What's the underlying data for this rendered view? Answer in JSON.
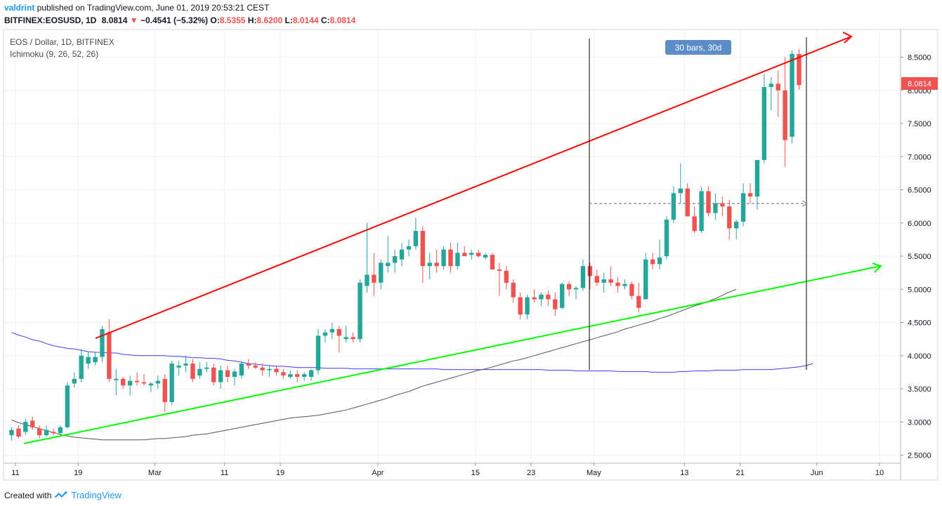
{
  "header": {
    "author": "valdrint",
    "published": " published on TradingView.com, June 01, 2019 20:53:21 CEST",
    "symbol": "BITFINEX:EOSUSD, 1D",
    "last": "8.0814",
    "change": "−0.4541 (−5.32%)",
    "o_label": "O:",
    "o": "8.5355",
    "h_label": "H:",
    "h": "8.6200",
    "l_label": "L:",
    "l": "8.0144",
    "c_label": "C:",
    "c": "8.0814",
    "pair": "EOS / Dollar, 1D, BITFINEX",
    "indicator": "Ichimoku (9, 26, 52, 26)"
  },
  "footer": {
    "created_with": "Created with",
    "brand": "TradingView"
  },
  "colors": {
    "up": "#26a69a",
    "down": "#ef5350",
    "red_line": "#ff0000",
    "green_line": "#00ff00",
    "base_line": "#3f3fff",
    "lagging_line": "#555555",
    "label_bg": "#5b8cc7",
    "price_label_bg": "#ef5350"
  },
  "chart_data": {
    "type": "candlestick",
    "y_axis": {
      "min": 2.5,
      "max": 8.5,
      "ticks": [
        "2.5000",
        "3.0000",
        "3.5000",
        "4.0000",
        "4.5000",
        "5.0000",
        "5.5000",
        "6.0000",
        "6.5000",
        "7.0000",
        "7.5000",
        "8.0000",
        "8.5000"
      ]
    },
    "x_ticks": [
      "11",
      "19",
      "Mar",
      "11",
      "19",
      "Apr",
      "15",
      "23",
      "May",
      "13",
      "21",
      "Jun",
      "10"
    ],
    "last_price_label": "8.0814",
    "candles": [
      {
        "o": 2.8,
        "h": 2.92,
        "l": 2.72,
        "c": 2.88
      },
      {
        "o": 2.9,
        "h": 2.95,
        "l": 2.75,
        "c": 2.78
      },
      {
        "o": 2.85,
        "h": 3.05,
        "l": 2.8,
        "c": 3.0
      },
      {
        "o": 3.02,
        "h": 3.08,
        "l": 2.88,
        "c": 2.92
      },
      {
        "o": 2.9,
        "h": 2.95,
        "l": 2.75,
        "c": 2.8
      },
      {
        "o": 2.8,
        "h": 2.95,
        "l": 2.78,
        "c": 2.88
      },
      {
        "o": 2.85,
        "h": 2.9,
        "l": 2.8,
        "c": 2.83
      },
      {
        "o": 2.83,
        "h": 2.95,
        "l": 2.8,
        "c": 2.92
      },
      {
        "o": 2.92,
        "h": 3.6,
        "l": 2.9,
        "c": 3.55
      },
      {
        "o": 3.58,
        "h": 3.75,
        "l": 3.52,
        "c": 3.65
      },
      {
        "o": 3.65,
        "h": 4.1,
        "l": 3.6,
        "c": 4.0
      },
      {
        "o": 3.88,
        "h": 4.05,
        "l": 3.8,
        "c": 3.98
      },
      {
        "o": 3.9,
        "h": 4.05,
        "l": 3.85,
        "c": 3.98
      },
      {
        "o": 3.98,
        "h": 4.45,
        "l": 3.9,
        "c": 4.4
      },
      {
        "o": 4.35,
        "h": 4.55,
        "l": 3.6,
        "c": 3.65
      },
      {
        "o": 3.63,
        "h": 3.8,
        "l": 3.4,
        "c": 3.65
      },
      {
        "o": 3.65,
        "h": 3.68,
        "l": 3.5,
        "c": 3.55
      },
      {
        "o": 3.55,
        "h": 3.7,
        "l": 3.4,
        "c": 3.62
      },
      {
        "o": 3.62,
        "h": 3.75,
        "l": 3.55,
        "c": 3.6
      },
      {
        "o": 3.6,
        "h": 3.72,
        "l": 3.55,
        "c": 3.58
      },
      {
        "o": 3.55,
        "h": 3.6,
        "l": 3.45,
        "c": 3.58
      },
      {
        "o": 3.58,
        "h": 3.7,
        "l": 3.5,
        "c": 3.62
      },
      {
        "o": 3.65,
        "h": 3.72,
        "l": 3.15,
        "c": 3.3
      },
      {
        "o": 3.3,
        "h": 3.92,
        "l": 3.25,
        "c": 3.88
      },
      {
        "o": 3.82,
        "h": 3.92,
        "l": 3.7,
        "c": 3.85
      },
      {
        "o": 3.85,
        "h": 4.0,
        "l": 3.75,
        "c": 3.88
      },
      {
        "o": 3.88,
        "h": 3.95,
        "l": 3.6,
        "c": 3.65
      },
      {
        "o": 3.7,
        "h": 3.9,
        "l": 3.65,
        "c": 3.8
      },
      {
        "o": 3.8,
        "h": 3.9,
        "l": 3.75,
        "c": 3.82
      },
      {
        "o": 3.82,
        "h": 3.88,
        "l": 3.55,
        "c": 3.6
      },
      {
        "o": 3.6,
        "h": 3.85,
        "l": 3.5,
        "c": 3.78
      },
      {
        "o": 3.78,
        "h": 3.85,
        "l": 3.6,
        "c": 3.68
      },
      {
        "o": 3.68,
        "h": 3.8,
        "l": 3.55,
        "c": 3.76
      },
      {
        "o": 3.7,
        "h": 3.92,
        "l": 3.65,
        "c": 3.88
      },
      {
        "o": 3.88,
        "h": 3.95,
        "l": 3.8,
        "c": 3.85
      },
      {
        "o": 3.85,
        "h": 3.9,
        "l": 3.8,
        "c": 3.82
      },
      {
        "o": 3.82,
        "h": 3.88,
        "l": 3.7,
        "c": 3.78
      },
      {
        "o": 3.78,
        "h": 3.85,
        "l": 3.68,
        "c": 3.8
      },
      {
        "o": 3.8,
        "h": 3.85,
        "l": 3.7,
        "c": 3.75
      },
      {
        "o": 3.75,
        "h": 3.8,
        "l": 3.65,
        "c": 3.7
      },
      {
        "o": 3.68,
        "h": 3.78,
        "l": 3.65,
        "c": 3.72
      },
      {
        "o": 3.72,
        "h": 3.78,
        "l": 3.6,
        "c": 3.68
      },
      {
        "o": 3.68,
        "h": 3.75,
        "l": 3.62,
        "c": 3.72
      },
      {
        "o": 3.68,
        "h": 3.8,
        "l": 3.62,
        "c": 3.78
      },
      {
        "o": 3.78,
        "h": 4.4,
        "l": 3.72,
        "c": 4.3
      },
      {
        "o": 4.3,
        "h": 4.4,
        "l": 4.2,
        "c": 4.35
      },
      {
        "o": 4.35,
        "h": 4.5,
        "l": 4.25,
        "c": 4.4
      },
      {
        "o": 4.4,
        "h": 4.45,
        "l": 4.05,
        "c": 4.3
      },
      {
        "o": 4.25,
        "h": 4.45,
        "l": 4.2,
        "c": 4.28
      },
      {
        "o": 4.28,
        "h": 4.35,
        "l": 4.2,
        "c": 4.25
      },
      {
        "o": 4.25,
        "h": 5.15,
        "l": 4.2,
        "c": 5.1
      },
      {
        "o": 5.05,
        "h": 6.0,
        "l": 4.95,
        "c": 5.22
      },
      {
        "o": 5.22,
        "h": 5.55,
        "l": 4.9,
        "c": 5.1
      },
      {
        "o": 5.1,
        "h": 5.45,
        "l": 5.0,
        "c": 5.4
      },
      {
        "o": 5.35,
        "h": 5.8,
        "l": 5.25,
        "c": 5.4
      },
      {
        "o": 5.4,
        "h": 5.6,
        "l": 5.25,
        "c": 5.5
      },
      {
        "o": 5.45,
        "h": 5.7,
        "l": 5.35,
        "c": 5.6
      },
      {
        "o": 5.6,
        "h": 5.75,
        "l": 5.5,
        "c": 5.65
      },
      {
        "o": 5.65,
        "h": 6.08,
        "l": 5.6,
        "c": 5.88
      },
      {
        "o": 5.88,
        "h": 5.95,
        "l": 5.1,
        "c": 5.35
      },
      {
        "o": 5.35,
        "h": 5.55,
        "l": 5.15,
        "c": 5.4
      },
      {
        "o": 5.4,
        "h": 5.6,
        "l": 5.25,
        "c": 5.35
      },
      {
        "o": 5.35,
        "h": 5.65,
        "l": 5.3,
        "c": 5.6
      },
      {
        "o": 5.6,
        "h": 5.7,
        "l": 5.25,
        "c": 5.35
      },
      {
        "o": 5.35,
        "h": 5.7,
        "l": 5.3,
        "c": 5.55
      },
      {
        "o": 5.55,
        "h": 5.65,
        "l": 5.5,
        "c": 5.5
      },
      {
        "o": 5.52,
        "h": 5.6,
        "l": 5.45,
        "c": 5.55
      },
      {
        "o": 5.55,
        "h": 5.6,
        "l": 5.48,
        "c": 5.5
      },
      {
        "o": 5.48,
        "h": 5.55,
        "l": 5.45,
        "c": 5.52
      },
      {
        "o": 5.52,
        "h": 5.55,
        "l": 5.3,
        "c": 5.3
      },
      {
        "o": 5.3,
        "h": 5.4,
        "l": 4.9,
        "c": 5.28
      },
      {
        "o": 5.28,
        "h": 5.35,
        "l": 5.0,
        "c": 5.1
      },
      {
        "o": 5.1,
        "h": 5.15,
        "l": 4.8,
        "c": 4.88
      },
      {
        "o": 4.88,
        "h": 4.95,
        "l": 4.55,
        "c": 4.62
      },
      {
        "o": 4.62,
        "h": 4.92,
        "l": 4.55,
        "c": 4.88
      },
      {
        "o": 4.88,
        "h": 5.0,
        "l": 4.8,
        "c": 4.85
      },
      {
        "o": 4.85,
        "h": 4.95,
        "l": 4.75,
        "c": 4.92
      },
      {
        "o": 4.92,
        "h": 4.98,
        "l": 4.75,
        "c": 4.85
      },
      {
        "o": 4.85,
        "h": 4.95,
        "l": 4.6,
        "c": 4.7
      },
      {
        "o": 4.72,
        "h": 5.1,
        "l": 4.7,
        "c": 5.08
      },
      {
        "o": 5.08,
        "h": 5.12,
        "l": 4.9,
        "c": 5.0
      },
      {
        "o": 5.0,
        "h": 5.05,
        "l": 4.85,
        "c": 5.02
      },
      {
        "o": 5.02,
        "h": 5.45,
        "l": 4.98,
        "c": 5.35
      },
      {
        "o": 5.35,
        "h": 5.4,
        "l": 5.0,
        "c": 5.2
      },
      {
        "o": 5.2,
        "h": 5.3,
        "l": 5.05,
        "c": 5.1
      },
      {
        "o": 5.1,
        "h": 5.25,
        "l": 4.95,
        "c": 5.15
      },
      {
        "o": 5.15,
        "h": 5.35,
        "l": 5.05,
        "c": 5.1
      },
      {
        "o": 5.1,
        "h": 5.18,
        "l": 4.95,
        "c": 5.05
      },
      {
        "o": 5.05,
        "h": 5.15,
        "l": 5.0,
        "c": 5.08
      },
      {
        "o": 5.08,
        "h": 5.12,
        "l": 4.85,
        "c": 4.9
      },
      {
        "o": 4.9,
        "h": 5.1,
        "l": 4.65,
        "c": 4.72
      },
      {
        "o": 4.85,
        "h": 5.55,
        "l": 4.85,
        "c": 5.45
      },
      {
        "o": 5.45,
        "h": 5.55,
        "l": 5.3,
        "c": 5.38
      },
      {
        "o": 5.38,
        "h": 5.75,
        "l": 5.3,
        "c": 5.48
      },
      {
        "o": 5.5,
        "h": 6.1,
        "l": 5.45,
        "c": 6.05
      },
      {
        "o": 6.05,
        "h": 6.55,
        "l": 6.0,
        "c": 6.45
      },
      {
        "o": 6.45,
        "h": 6.9,
        "l": 6.3,
        "c": 6.52
      },
      {
        "o": 6.52,
        "h": 6.6,
        "l": 6.1,
        "c": 6.1
      },
      {
        "o": 6.1,
        "h": 6.25,
        "l": 5.85,
        "c": 5.88
      },
      {
        "o": 5.88,
        "h": 6.55,
        "l": 5.85,
        "c": 6.48
      },
      {
        "o": 6.48,
        "h": 6.55,
        "l": 6.1,
        "c": 6.15
      },
      {
        "o": 6.15,
        "h": 6.45,
        "l": 6.05,
        "c": 6.3
      },
      {
        "o": 6.3,
        "h": 6.4,
        "l": 6.1,
        "c": 6.25
      },
      {
        "o": 6.25,
        "h": 6.35,
        "l": 5.75,
        "c": 5.92
      },
      {
        "o": 5.92,
        "h": 6.05,
        "l": 5.75,
        "c": 6.02
      },
      {
        "o": 6.02,
        "h": 6.6,
        "l": 5.95,
        "c": 6.45
      },
      {
        "o": 6.45,
        "h": 6.6,
        "l": 6.3,
        "c": 6.4
      },
      {
        "o": 6.4,
        "h": 6.95,
        "l": 6.2,
        "c": 6.95
      },
      {
        "o": 6.95,
        "h": 8.25,
        "l": 6.9,
        "c": 8.05
      },
      {
        "o": 8.05,
        "h": 8.2,
        "l": 7.7,
        "c": 8.1
      },
      {
        "o": 8.1,
        "h": 8.3,
        "l": 7.6,
        "c": 8.0
      },
      {
        "o": 8.0,
        "h": 8.5,
        "l": 6.85,
        "c": 7.25
      },
      {
        "o": 7.3,
        "h": 8.6,
        "l": 7.2,
        "c": 8.55
      },
      {
        "o": 8.55,
        "h": 8.62,
        "l": 8.01,
        "c": 8.08
      }
    ],
    "kijun_base_line": [
      4.35,
      4.31,
      4.28,
      4.24,
      4.22,
      4.18,
      4.15,
      4.13,
      4.11,
      4.1,
      4.08,
      4.06,
      4.05,
      4.05,
      4.04,
      4.04,
      4.02,
      4.01,
      4.0,
      4.0,
      4.0,
      4.0,
      4.0,
      3.99,
      3.99,
      3.98,
      3.97,
      3.97,
      3.96,
      3.96,
      3.95,
      3.93,
      3.92,
      3.9,
      3.88,
      3.87,
      3.86,
      3.85,
      3.84,
      3.84,
      3.83,
      3.82,
      3.82,
      3.82,
      3.82,
      3.81,
      3.81,
      3.81,
      3.81,
      3.8,
      3.8,
      3.8,
      3.8,
      3.8,
      3.8,
      3.8,
      3.8,
      3.8,
      3.8,
      3.8,
      3.8,
      3.8,
      3.79,
      3.79,
      3.79,
      3.79,
      3.79,
      3.79,
      3.79,
      3.79,
      3.79,
      3.79,
      3.79,
      3.79,
      3.79,
      3.79,
      3.79,
      3.78,
      3.78,
      3.78,
      3.78,
      3.77,
      3.77,
      3.77,
      3.77,
      3.77,
      3.77,
      3.76,
      3.76,
      3.76,
      3.76,
      3.76,
      3.75,
      3.75,
      3.75,
      3.75,
      3.76,
      3.76,
      3.77,
      3.77,
      3.77,
      3.78,
      3.78,
      3.78,
      3.78,
      3.79,
      3.79,
      3.79,
      3.79,
      3.79,
      3.8,
      3.81,
      3.82,
      3.83,
      3.85,
      3.88
    ],
    "chikou_lagging_line": [
      3.03,
      2.99,
      2.96,
      2.93,
      2.9,
      2.87,
      2.84,
      2.81,
      2.79,
      2.77,
      2.76,
      2.75,
      2.74,
      2.73,
      2.73,
      2.73,
      2.73,
      2.73,
      2.73,
      2.73,
      2.74,
      2.75,
      2.75,
      2.76,
      2.77,
      2.78,
      2.8,
      2.81,
      2.82,
      2.84,
      2.86,
      2.88,
      2.9,
      2.92,
      2.94,
      2.96,
      2.98,
      3.0,
      3.02,
      3.04,
      3.06,
      3.07,
      3.08,
      3.09,
      3.1,
      3.12,
      3.14,
      3.16,
      3.18,
      3.21,
      3.24,
      3.27,
      3.3,
      3.33,
      3.36,
      3.4,
      3.43,
      3.46,
      3.5,
      3.54,
      3.57,
      3.6,
      3.63,
      3.66,
      3.69,
      3.72,
      3.75,
      3.78,
      3.8,
      3.83,
      3.86,
      3.89,
      3.92,
      3.94,
      3.97,
      4.0,
      4.03,
      4.06,
      4.09,
      4.12,
      4.15,
      4.18,
      4.21,
      4.24,
      4.27,
      4.3,
      4.33,
      4.36,
      4.4,
      4.43,
      4.46,
      4.49,
      4.52,
      4.56,
      4.59,
      4.63,
      4.67,
      4.71,
      4.75,
      4.78,
      4.82,
      4.86,
      4.91,
      4.96,
      5.0
    ]
  },
  "drawings": {
    "measure_label": "30 bars, 30d"
  }
}
